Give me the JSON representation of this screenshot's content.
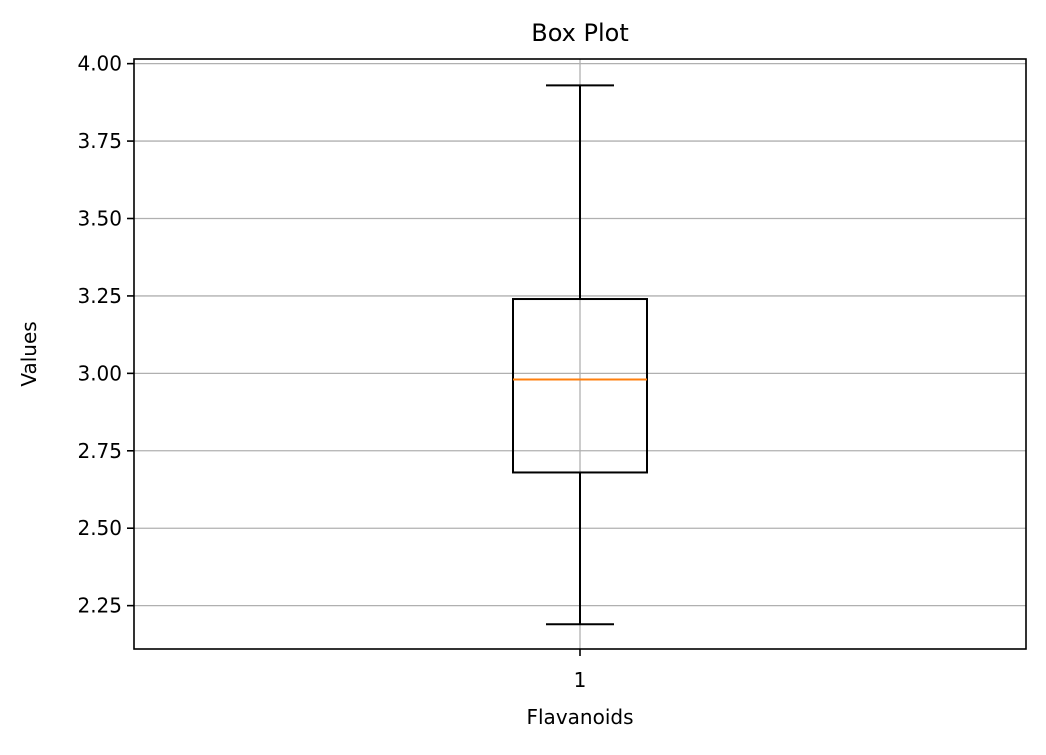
{
  "chart_data": {
    "type": "box",
    "title": "Box Plot",
    "xlabel": "Flavanoids",
    "ylabel": "Values",
    "categories": [
      "1"
    ],
    "boxes": [
      {
        "category": "1",
        "whisker_low": 2.19,
        "q1": 2.68,
        "median": 2.98,
        "q3": 3.24,
        "whisker_high": 3.93
      }
    ],
    "ylim": [
      2.11,
      4.015
    ],
    "yticks": [
      2.25,
      2.5,
      2.75,
      3.0,
      3.25,
      3.5,
      3.75,
      4.0
    ],
    "ytick_labels": [
      "2.25",
      "2.50",
      "2.75",
      "3.00",
      "3.25",
      "3.50",
      "3.75",
      "4.00"
    ],
    "grid": true,
    "colors": {
      "box": "#000000",
      "median": "#ff7f0e",
      "grid": "#b0b0b0"
    }
  }
}
